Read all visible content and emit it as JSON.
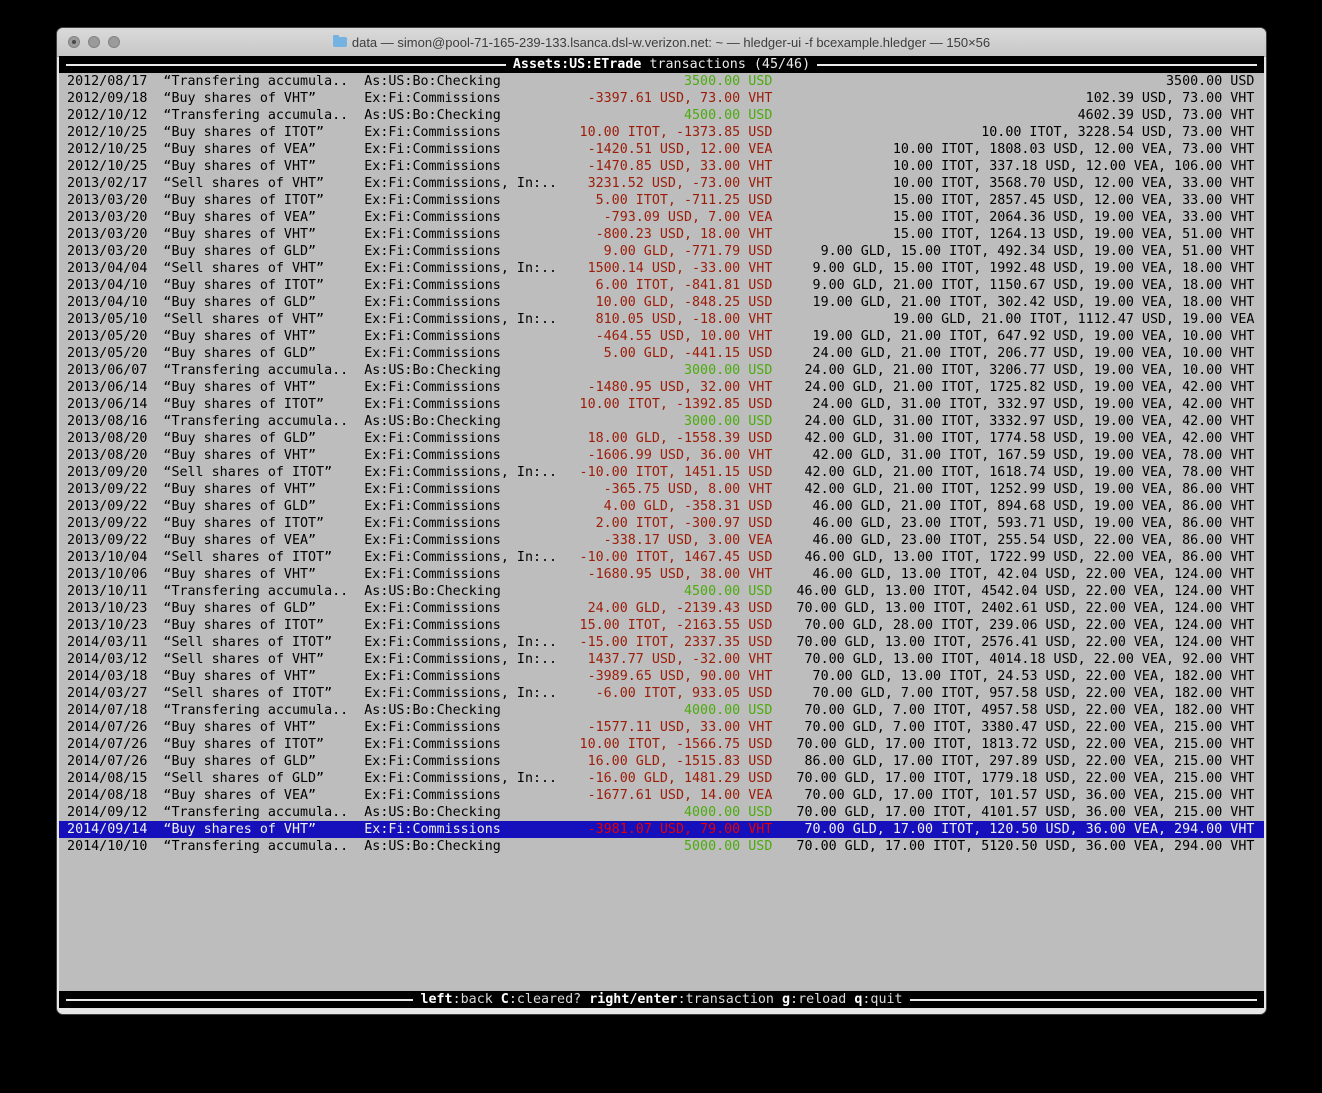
{
  "window": {
    "title": "data — simon@pool-71-165-239-133.lsanca.dsl-w.verizon.net: ~ — hledger-ui -f bcexample.hledger — 150×56"
  },
  "screen": {
    "account": "Assets:US:ETrade",
    "mode": "transactions",
    "count": "(45/46)"
  },
  "keybar": {
    "items": [
      {
        "key": "left",
        "action": ":back"
      },
      {
        "key": "C",
        "action": ":cleared?"
      },
      {
        "key": "right/enter",
        "action": ":transaction"
      },
      {
        "key": "g",
        "action": ":reload"
      },
      {
        "key": "q",
        "action": ":quit"
      }
    ]
  },
  "colors": {
    "term-bg": "#bdbdbd",
    "bar-bg": "#000000",
    "bar-fg": "#ebebeb",
    "fg": "#000000",
    "green": "#4cab0e",
    "red": "#9b1c08",
    "sel-bg": "#1510bb",
    "sel-fg": "#f0f0f0",
    "sel-red": "#e60000"
  },
  "register": {
    "rows": [
      {
        "date": "2012/08/17",
        "description": "“Transfering accumula..",
        "other_accounts": "As:US:Bo:Checking",
        "change": "3500.00 USD",
        "amount_color": "green",
        "balance": "3500.00 USD"
      },
      {
        "date": "2012/09/18",
        "description": "“Buy shares of VHT”",
        "other_accounts": "Ex:Fi:Commissions",
        "change": "-3397.61 USD, 73.00 VHT",
        "amount_color": "red",
        "balance": "102.39 USD, 73.00 VHT"
      },
      {
        "date": "2012/10/12",
        "description": "“Transfering accumula..",
        "other_accounts": "As:US:Bo:Checking",
        "change": "4500.00 USD",
        "amount_color": "green",
        "balance": "4602.39 USD, 73.00 VHT"
      },
      {
        "date": "2012/10/25",
        "description": "“Buy shares of ITOT”",
        "other_accounts": "Ex:Fi:Commissions",
        "change": "10.00 ITOT, -1373.85 USD",
        "amount_color": "red",
        "balance": "10.00 ITOT, 3228.54 USD, 73.00 VHT"
      },
      {
        "date": "2012/10/25",
        "description": "“Buy shares of VEA”",
        "other_accounts": "Ex:Fi:Commissions",
        "change": "-1420.51 USD, 12.00 VEA",
        "amount_color": "red",
        "balance": "10.00 ITOT, 1808.03 USD, 12.00 VEA, 73.00 VHT"
      },
      {
        "date": "2012/10/25",
        "description": "“Buy shares of VHT”",
        "other_accounts": "Ex:Fi:Commissions",
        "change": "-1470.85 USD, 33.00 VHT",
        "amount_color": "red",
        "balance": "10.00 ITOT, 337.18 USD, 12.00 VEA, 106.00 VHT"
      },
      {
        "date": "2013/02/17",
        "description": "“Sell shares of VHT”",
        "other_accounts": "Ex:Fi:Commissions, In:..",
        "change": "3231.52 USD, -73.00 VHT",
        "amount_color": "red",
        "balance": "10.00 ITOT, 3568.70 USD, 12.00 VEA, 33.00 VHT"
      },
      {
        "date": "2013/03/20",
        "description": "“Buy shares of ITOT”",
        "other_accounts": "Ex:Fi:Commissions",
        "change": "5.00 ITOT, -711.25 USD",
        "amount_color": "red",
        "balance": "15.00 ITOT, 2857.45 USD, 12.00 VEA, 33.00 VHT"
      },
      {
        "date": "2013/03/20",
        "description": "“Buy shares of VEA”",
        "other_accounts": "Ex:Fi:Commissions",
        "change": "-793.09 USD, 7.00 VEA",
        "amount_color": "red",
        "balance": "15.00 ITOT, 2064.36 USD, 19.00 VEA, 33.00 VHT"
      },
      {
        "date": "2013/03/20",
        "description": "“Buy shares of VHT”",
        "other_accounts": "Ex:Fi:Commissions",
        "change": "-800.23 USD, 18.00 VHT",
        "amount_color": "red",
        "balance": "15.00 ITOT, 1264.13 USD, 19.00 VEA, 51.00 VHT"
      },
      {
        "date": "2013/03/20",
        "description": "“Buy shares of GLD”",
        "other_accounts": "Ex:Fi:Commissions",
        "change": "9.00 GLD, -771.79 USD",
        "amount_color": "red",
        "balance": "9.00 GLD, 15.00 ITOT, 492.34 USD, 19.00 VEA, 51.00 VHT"
      },
      {
        "date": "2013/04/04",
        "description": "“Sell shares of VHT”",
        "other_accounts": "Ex:Fi:Commissions, In:..",
        "change": "1500.14 USD, -33.00 VHT",
        "amount_color": "red",
        "balance": "9.00 GLD, 15.00 ITOT, 1992.48 USD, 19.00 VEA, 18.00 VHT"
      },
      {
        "date": "2013/04/10",
        "description": "“Buy shares of ITOT”",
        "other_accounts": "Ex:Fi:Commissions",
        "change": "6.00 ITOT, -841.81 USD",
        "amount_color": "red",
        "balance": "9.00 GLD, 21.00 ITOT, 1150.67 USD, 19.00 VEA, 18.00 VHT"
      },
      {
        "date": "2013/04/10",
        "description": "“Buy shares of GLD”",
        "other_accounts": "Ex:Fi:Commissions",
        "change": "10.00 GLD, -848.25 USD",
        "amount_color": "red",
        "balance": "19.00 GLD, 21.00 ITOT, 302.42 USD, 19.00 VEA, 18.00 VHT"
      },
      {
        "date": "2013/05/10",
        "description": "“Sell shares of VHT”",
        "other_accounts": "Ex:Fi:Commissions, In:..",
        "change": "810.05 USD, -18.00 VHT",
        "amount_color": "red",
        "balance": "19.00 GLD, 21.00 ITOT, 1112.47 USD, 19.00 VEA"
      },
      {
        "date": "2013/05/20",
        "description": "“Buy shares of VHT”",
        "other_accounts": "Ex:Fi:Commissions",
        "change": "-464.55 USD, 10.00 VHT",
        "amount_color": "red",
        "balance": "19.00 GLD, 21.00 ITOT, 647.92 USD, 19.00 VEA, 10.00 VHT"
      },
      {
        "date": "2013/05/20",
        "description": "“Buy shares of GLD”",
        "other_accounts": "Ex:Fi:Commissions",
        "change": "5.00 GLD, -441.15 USD",
        "amount_color": "red",
        "balance": "24.00 GLD, 21.00 ITOT, 206.77 USD, 19.00 VEA, 10.00 VHT"
      },
      {
        "date": "2013/06/07",
        "description": "“Transfering accumula..",
        "other_accounts": "As:US:Bo:Checking",
        "change": "3000.00 USD",
        "amount_color": "green",
        "balance": "24.00 GLD, 21.00 ITOT, 3206.77 USD, 19.00 VEA, 10.00 VHT"
      },
      {
        "date": "2013/06/14",
        "description": "“Buy shares of VHT”",
        "other_accounts": "Ex:Fi:Commissions",
        "change": "-1480.95 USD, 32.00 VHT",
        "amount_color": "red",
        "balance": "24.00 GLD, 21.00 ITOT, 1725.82 USD, 19.00 VEA, 42.00 VHT"
      },
      {
        "date": "2013/06/14",
        "description": "“Buy shares of ITOT”",
        "other_accounts": "Ex:Fi:Commissions",
        "change": "10.00 ITOT, -1392.85 USD",
        "amount_color": "red",
        "balance": "24.00 GLD, 31.00 ITOT, 332.97 USD, 19.00 VEA, 42.00 VHT"
      },
      {
        "date": "2013/08/16",
        "description": "“Transfering accumula..",
        "other_accounts": "As:US:Bo:Checking",
        "change": "3000.00 USD",
        "amount_color": "green",
        "balance": "24.00 GLD, 31.00 ITOT, 3332.97 USD, 19.00 VEA, 42.00 VHT"
      },
      {
        "date": "2013/08/20",
        "description": "“Buy shares of GLD”",
        "other_accounts": "Ex:Fi:Commissions",
        "change": "18.00 GLD, -1558.39 USD",
        "amount_color": "red",
        "balance": "42.00 GLD, 31.00 ITOT, 1774.58 USD, 19.00 VEA, 42.00 VHT"
      },
      {
        "date": "2013/08/20",
        "description": "“Buy shares of VHT”",
        "other_accounts": "Ex:Fi:Commissions",
        "change": "-1606.99 USD, 36.00 VHT",
        "amount_color": "red",
        "balance": "42.00 GLD, 31.00 ITOT, 167.59 USD, 19.00 VEA, 78.00 VHT"
      },
      {
        "date": "2013/09/20",
        "description": "“Sell shares of ITOT”",
        "other_accounts": "Ex:Fi:Commissions, In:..",
        "change": "-10.00 ITOT, 1451.15 USD",
        "amount_color": "red",
        "balance": "42.00 GLD, 21.00 ITOT, 1618.74 USD, 19.00 VEA, 78.00 VHT"
      },
      {
        "date": "2013/09/22",
        "description": "“Buy shares of VHT”",
        "other_accounts": "Ex:Fi:Commissions",
        "change": "-365.75 USD, 8.00 VHT",
        "amount_color": "red",
        "balance": "42.00 GLD, 21.00 ITOT, 1252.99 USD, 19.00 VEA, 86.00 VHT"
      },
      {
        "date": "2013/09/22",
        "description": "“Buy shares of GLD”",
        "other_accounts": "Ex:Fi:Commissions",
        "change": "4.00 GLD, -358.31 USD",
        "amount_color": "red",
        "balance": "46.00 GLD, 21.00 ITOT, 894.68 USD, 19.00 VEA, 86.00 VHT"
      },
      {
        "date": "2013/09/22",
        "description": "“Buy shares of ITOT”",
        "other_accounts": "Ex:Fi:Commissions",
        "change": "2.00 ITOT, -300.97 USD",
        "amount_color": "red",
        "balance": "46.00 GLD, 23.00 ITOT, 593.71 USD, 19.00 VEA, 86.00 VHT"
      },
      {
        "date": "2013/09/22",
        "description": "“Buy shares of VEA”",
        "other_accounts": "Ex:Fi:Commissions",
        "change": "-338.17 USD, 3.00 VEA",
        "amount_color": "red",
        "balance": "46.00 GLD, 23.00 ITOT, 255.54 USD, 22.00 VEA, 86.00 VHT"
      },
      {
        "date": "2013/10/04",
        "description": "“Sell shares of ITOT”",
        "other_accounts": "Ex:Fi:Commissions, In:..",
        "change": "-10.00 ITOT, 1467.45 USD",
        "amount_color": "red",
        "balance": "46.00 GLD, 13.00 ITOT, 1722.99 USD, 22.00 VEA, 86.00 VHT"
      },
      {
        "date": "2013/10/06",
        "description": "“Buy shares of VHT”",
        "other_accounts": "Ex:Fi:Commissions",
        "change": "-1680.95 USD, 38.00 VHT",
        "amount_color": "red",
        "balance": "46.00 GLD, 13.00 ITOT, 42.04 USD, 22.00 VEA, 124.00 VHT"
      },
      {
        "date": "2013/10/11",
        "description": "“Transfering accumula..",
        "other_accounts": "As:US:Bo:Checking",
        "change": "4500.00 USD",
        "amount_color": "green",
        "balance": "46.00 GLD, 13.00 ITOT, 4542.04 USD, 22.00 VEA, 124.00 VHT"
      },
      {
        "date": "2013/10/23",
        "description": "“Buy shares of GLD”",
        "other_accounts": "Ex:Fi:Commissions",
        "change": "24.00 GLD, -2139.43 USD",
        "amount_color": "red",
        "balance": "70.00 GLD, 13.00 ITOT, 2402.61 USD, 22.00 VEA, 124.00 VHT"
      },
      {
        "date": "2013/10/23",
        "description": "“Buy shares of ITOT”",
        "other_accounts": "Ex:Fi:Commissions",
        "change": "15.00 ITOT, -2163.55 USD",
        "amount_color": "red",
        "balance": "70.00 GLD, 28.00 ITOT, 239.06 USD, 22.00 VEA, 124.00 VHT"
      },
      {
        "date": "2014/03/11",
        "description": "“Sell shares of ITOT”",
        "other_accounts": "Ex:Fi:Commissions, In:..",
        "change": "-15.00 ITOT, 2337.35 USD",
        "amount_color": "red",
        "balance": "70.00 GLD, 13.00 ITOT, 2576.41 USD, 22.00 VEA, 124.00 VHT"
      },
      {
        "date": "2014/03/12",
        "description": "“Sell shares of VHT”",
        "other_accounts": "Ex:Fi:Commissions, In:..",
        "change": "1437.77 USD, -32.00 VHT",
        "amount_color": "red",
        "balance": "70.00 GLD, 13.00 ITOT, 4014.18 USD, 22.00 VEA, 92.00 VHT"
      },
      {
        "date": "2014/03/18",
        "description": "“Buy shares of VHT”",
        "other_accounts": "Ex:Fi:Commissions",
        "change": "-3989.65 USD, 90.00 VHT",
        "amount_color": "red",
        "balance": "70.00 GLD, 13.00 ITOT, 24.53 USD, 22.00 VEA, 182.00 VHT"
      },
      {
        "date": "2014/03/27",
        "description": "“Sell shares of ITOT”",
        "other_accounts": "Ex:Fi:Commissions, In:..",
        "change": "-6.00 ITOT, 933.05 USD",
        "amount_color": "red",
        "balance": "70.00 GLD, 7.00 ITOT, 957.58 USD, 22.00 VEA, 182.00 VHT"
      },
      {
        "date": "2014/07/18",
        "description": "“Transfering accumula..",
        "other_accounts": "As:US:Bo:Checking",
        "change": "4000.00 USD",
        "amount_color": "green",
        "balance": "70.00 GLD, 7.00 ITOT, 4957.58 USD, 22.00 VEA, 182.00 VHT"
      },
      {
        "date": "2014/07/26",
        "description": "“Buy shares of VHT”",
        "other_accounts": "Ex:Fi:Commissions",
        "change": "-1577.11 USD, 33.00 VHT",
        "amount_color": "red",
        "balance": "70.00 GLD, 7.00 ITOT, 3380.47 USD, 22.00 VEA, 215.00 VHT"
      },
      {
        "date": "2014/07/26",
        "description": "“Buy shares of ITOT”",
        "other_accounts": "Ex:Fi:Commissions",
        "change": "10.00 ITOT, -1566.75 USD",
        "amount_color": "red",
        "balance": "70.00 GLD, 17.00 ITOT, 1813.72 USD, 22.00 VEA, 215.00 VHT"
      },
      {
        "date": "2014/07/26",
        "description": "“Buy shares of GLD”",
        "other_accounts": "Ex:Fi:Commissions",
        "change": "16.00 GLD, -1515.83 USD",
        "amount_color": "red",
        "balance": "86.00 GLD, 17.00 ITOT, 297.89 USD, 22.00 VEA, 215.00 VHT"
      },
      {
        "date": "2014/08/15",
        "description": "“Sell shares of GLD”",
        "other_accounts": "Ex:Fi:Commissions, In:..",
        "change": "-16.00 GLD, 1481.29 USD",
        "amount_color": "red",
        "balance": "70.00 GLD, 17.00 ITOT, 1779.18 USD, 22.00 VEA, 215.00 VHT"
      },
      {
        "date": "2014/08/18",
        "description": "“Buy shares of VEA”",
        "other_accounts": "Ex:Fi:Commissions",
        "change": "-1677.61 USD, 14.00 VEA",
        "amount_color": "red",
        "balance": "70.00 GLD, 17.00 ITOT, 101.57 USD, 36.00 VEA, 215.00 VHT"
      },
      {
        "date": "2014/09/12",
        "description": "“Transfering accumula..",
        "other_accounts": "As:US:Bo:Checking",
        "change": "4000.00 USD",
        "amount_color": "green",
        "balance": "70.00 GLD, 17.00 ITOT, 4101.57 USD, 36.00 VEA, 215.00 VHT"
      },
      {
        "date": "2014/09/14",
        "description": "“Buy shares of VHT”",
        "other_accounts": "Ex:Fi:Commissions",
        "change": "-3981.07 USD, 79.00 VHT",
        "amount_color": "red",
        "balance": "70.00 GLD, 17.00 ITOT, 120.50 USD, 36.00 VEA, 294.00 VHT",
        "selected": true
      },
      {
        "date": "2014/10/10",
        "description": "“Transfering accumula..",
        "other_accounts": "As:US:Bo:Checking",
        "change": "5000.00 USD",
        "amount_color": "green",
        "balance": "70.00 GLD, 17.00 ITOT, 5120.50 USD, 36.00 VEA, 294.00 VHT"
      }
    ]
  }
}
